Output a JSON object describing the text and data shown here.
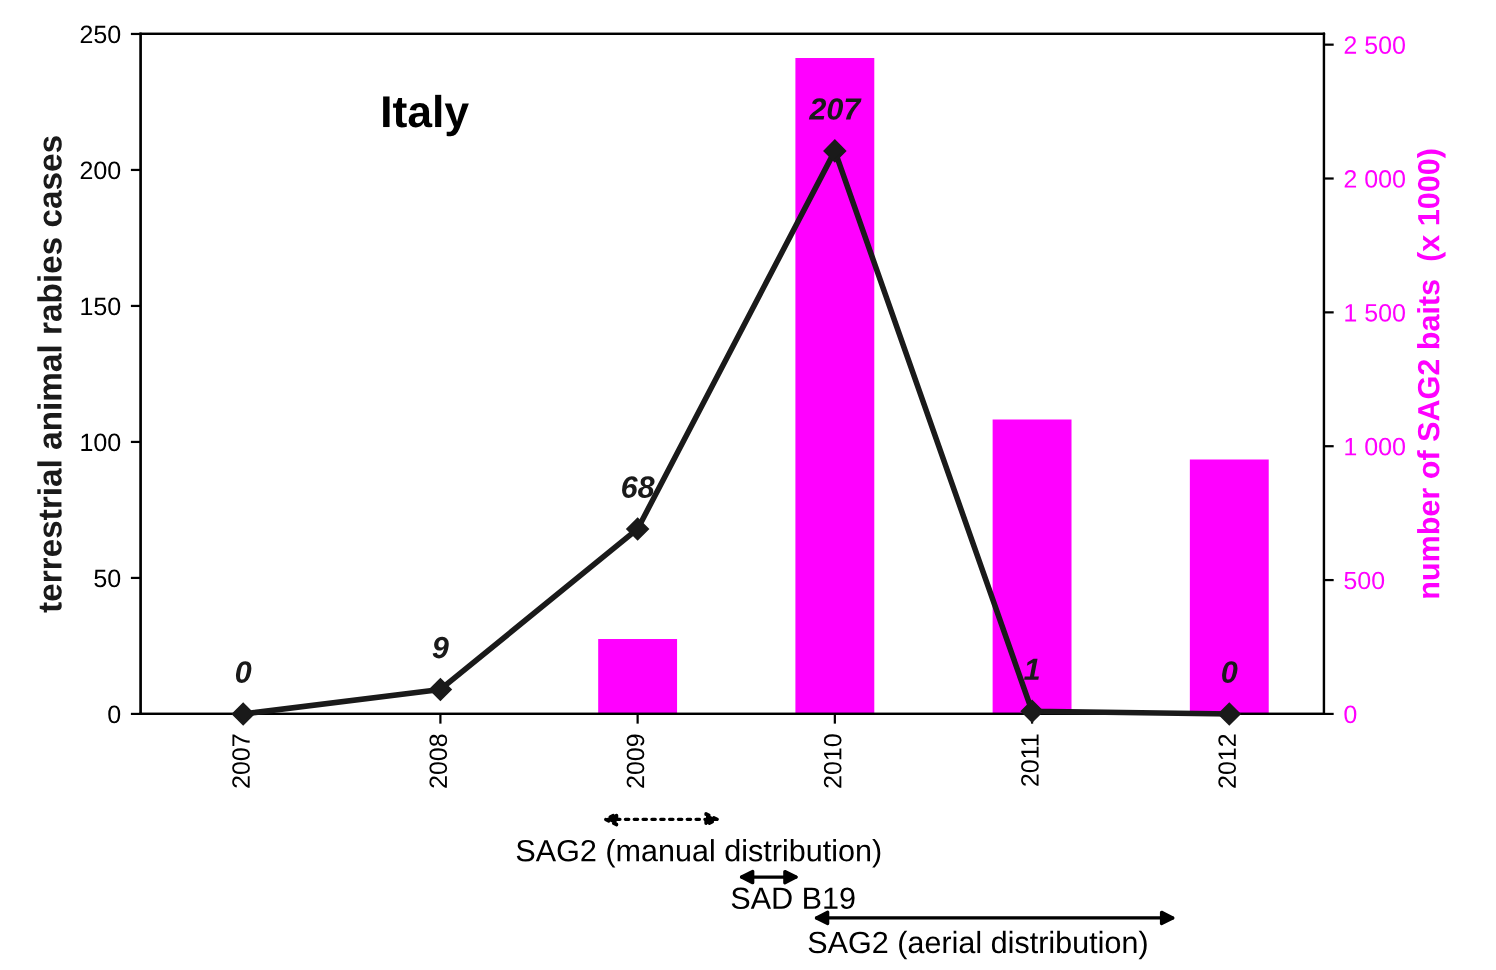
{
  "chart_data": {
    "type": "line",
    "title": "Italy",
    "categories": [
      "2007",
      "2008",
      "2009",
      "2010",
      "2011",
      "2012"
    ],
    "series": [
      {
        "type": "bar",
        "axis": "y2",
        "color": "#ff00ff",
        "values": [
          null,
          null,
          280,
          2450,
          1100,
          950
        ]
      },
      {
        "color": "#1a1a1a",
        "values": [
          0,
          9,
          68,
          207,
          1,
          0
        ],
        "data_labels": true,
        "marker": "diamond"
      }
    ],
    "ylabel": "terrestrial animal rabies cases",
    "y2label": "number of SAG2 baits  (x 1000)",
    "ylim": [
      0,
      250
    ],
    "yticks": [
      0,
      50,
      100,
      150,
      200,
      250
    ],
    "y2lim": [
      0,
      2540
    ],
    "y2ticks": [
      0,
      500,
      {
        "value": 1000,
        "label": "1 000"
      },
      {
        "value": 1500,
        "label": "1 500"
      },
      {
        "value": 2000,
        "label": "2 000"
      },
      {
        "value": 2500,
        "label": "2 500"
      }
    ],
    "grid": false,
    "legend": false,
    "annotations": [
      "SAG2 (manual distribution)",
      "SAD B19",
      "SAG2 (aerial distribution)"
    ]
  }
}
